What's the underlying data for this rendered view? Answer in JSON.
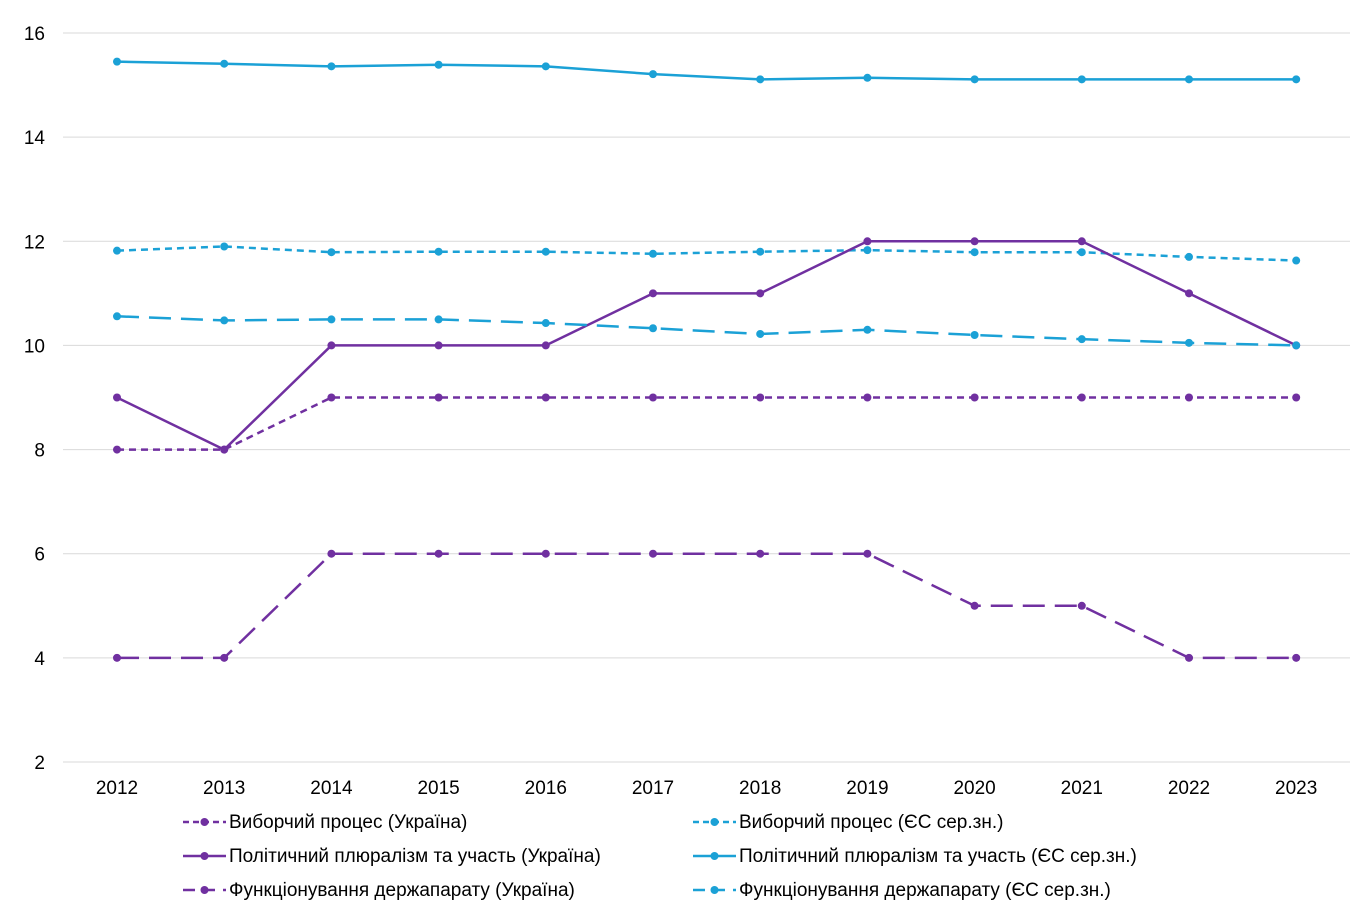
{
  "chart_data": {
    "type": "line",
    "title": "",
    "xlabel": "",
    "ylabel": "",
    "categories": [
      "2012",
      "2013",
      "2014",
      "2015",
      "2016",
      "2017",
      "2018",
      "2019",
      "2020",
      "2021",
      "2022",
      "2023"
    ],
    "ylim": [
      2,
      16
    ],
    "yticks": [
      2,
      4,
      6,
      8,
      10,
      12,
      14,
      16
    ],
    "grid": "horizontal",
    "legend_position": "bottom",
    "series": [
      {
        "name": "Виборчий процес (Україна)",
        "color": "#7030a0",
        "dash": "short-dash",
        "values": [
          8,
          8,
          9,
          9,
          9,
          9,
          9,
          9,
          9,
          9,
          9,
          9
        ]
      },
      {
        "name": "Виборчий процес (ЄС сер.зн.)",
        "color": "#1ba1d6",
        "dash": "short-dash",
        "values": [
          11.82,
          11.9,
          11.79,
          11.8,
          11.8,
          11.76,
          11.8,
          11.83,
          11.79,
          11.79,
          11.7,
          11.63
        ]
      },
      {
        "name": "Політичний плюралізм та участь (Україна)",
        "color": "#7030a0",
        "dash": "solid",
        "values": [
          9,
          8,
          10,
          10,
          10,
          11,
          11,
          12,
          12,
          12,
          11,
          10
        ]
      },
      {
        "name": "Політичний плюралізм та участь (ЄС сер.зн.)",
        "color": "#1ba1d6",
        "dash": "solid",
        "values": [
          15.45,
          15.41,
          15.36,
          15.39,
          15.36,
          15.21,
          15.11,
          15.14,
          15.11,
          15.11,
          15.11,
          15.11
        ]
      },
      {
        "name": "Функціонування держапарату (Україна)",
        "color": "#7030a0",
        "dash": "long-dash",
        "values": [
          4,
          4,
          6,
          6,
          6,
          6,
          6,
          6,
          5,
          5,
          4,
          4
        ]
      },
      {
        "name": "Функціонування держапарату (ЄС сер.зн.)",
        "color": "#1ba1d6",
        "dash": "long-dash",
        "values": [
          10.56,
          10.48,
          10.5,
          10.5,
          10.43,
          10.33,
          10.22,
          10.3,
          10.2,
          10.12,
          10.05,
          10.0
        ]
      }
    ]
  }
}
